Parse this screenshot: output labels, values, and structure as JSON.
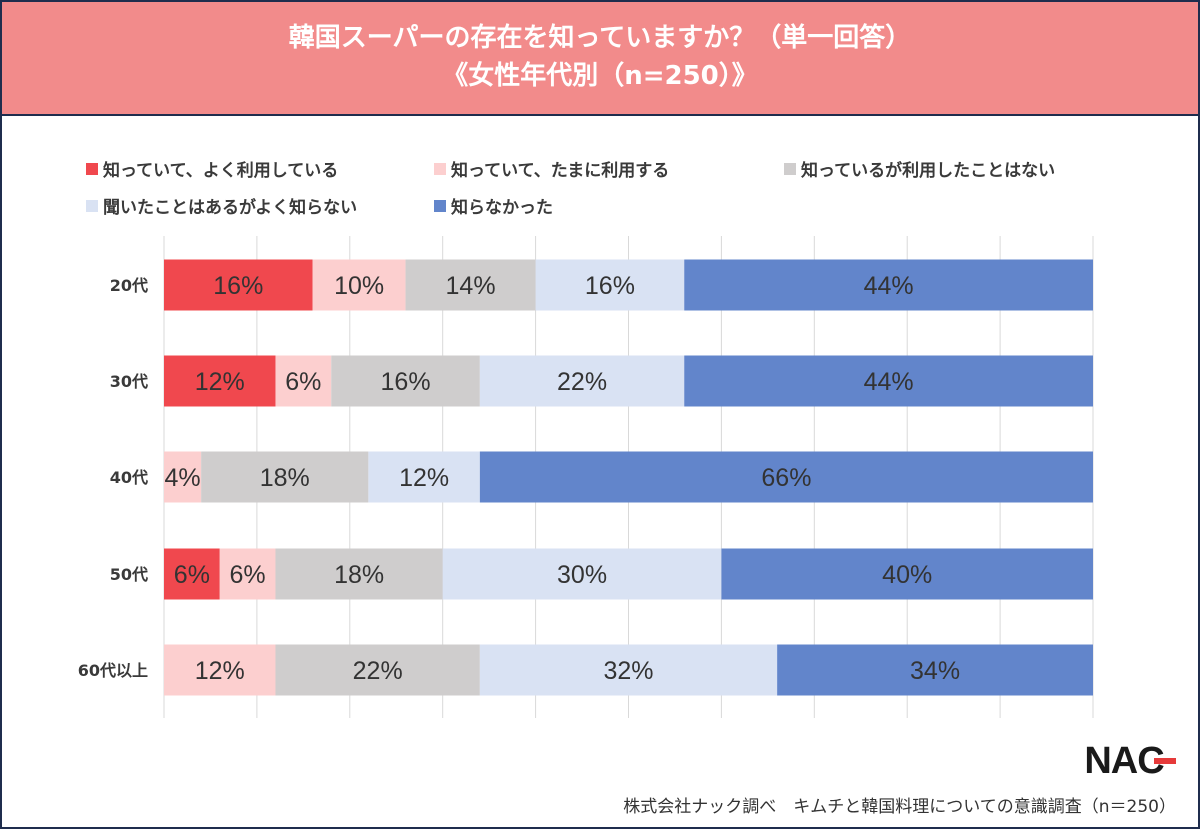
{
  "header": {
    "title_line1": "韓国スーパーの存在を知っていますか？（単一回答）",
    "title_line2": "《女性年代別（n=250）》"
  },
  "legend": [
    {
      "label": "知っていて、よく利用している",
      "color": "#f0484e"
    },
    {
      "label": "知っていて、たまに利用する",
      "color": "#fccfcf"
    },
    {
      "label": "知っているが利用したことはない",
      "color": "#cfcdcd"
    },
    {
      "label": "聞いたことはあるがよく知らない",
      "color": "#d9e2f3"
    },
    {
      "label": "知らなかった",
      "color": "#6285cb"
    }
  ],
  "chart_data": {
    "type": "bar",
    "orientation": "horizontal",
    "stacked": "100%",
    "categories": [
      "20代",
      "30代",
      "40代",
      "50代",
      "60代以上"
    ],
    "series": [
      {
        "name": "知っていて、よく利用している",
        "color": "#f0484e",
        "values": [
          16,
          12,
          0,
          6,
          0
        ]
      },
      {
        "name": "知っていて、たまに利用する",
        "color": "#fccfcf",
        "values": [
          10,
          6,
          4,
          6,
          12
        ]
      },
      {
        "name": "知っているが利用したことはない",
        "color": "#cfcdcd",
        "values": [
          14,
          16,
          18,
          18,
          22
        ]
      },
      {
        "name": "聞いたことはあるがよく知らない",
        "color": "#d9e2f3",
        "values": [
          16,
          22,
          12,
          30,
          32
        ]
      },
      {
        "name": "知らなかった",
        "color": "#6285cb",
        "values": [
          44,
          44,
          66,
          40,
          34
        ]
      }
    ],
    "value_suffix": "%",
    "xlim": [
      0,
      100
    ],
    "grid": true,
    "legend_position": "top"
  },
  "logo_text": "NAC",
  "footer": "株式会社ナック調べ　キムチと韓国料理についての意識調査（n＝250）"
}
